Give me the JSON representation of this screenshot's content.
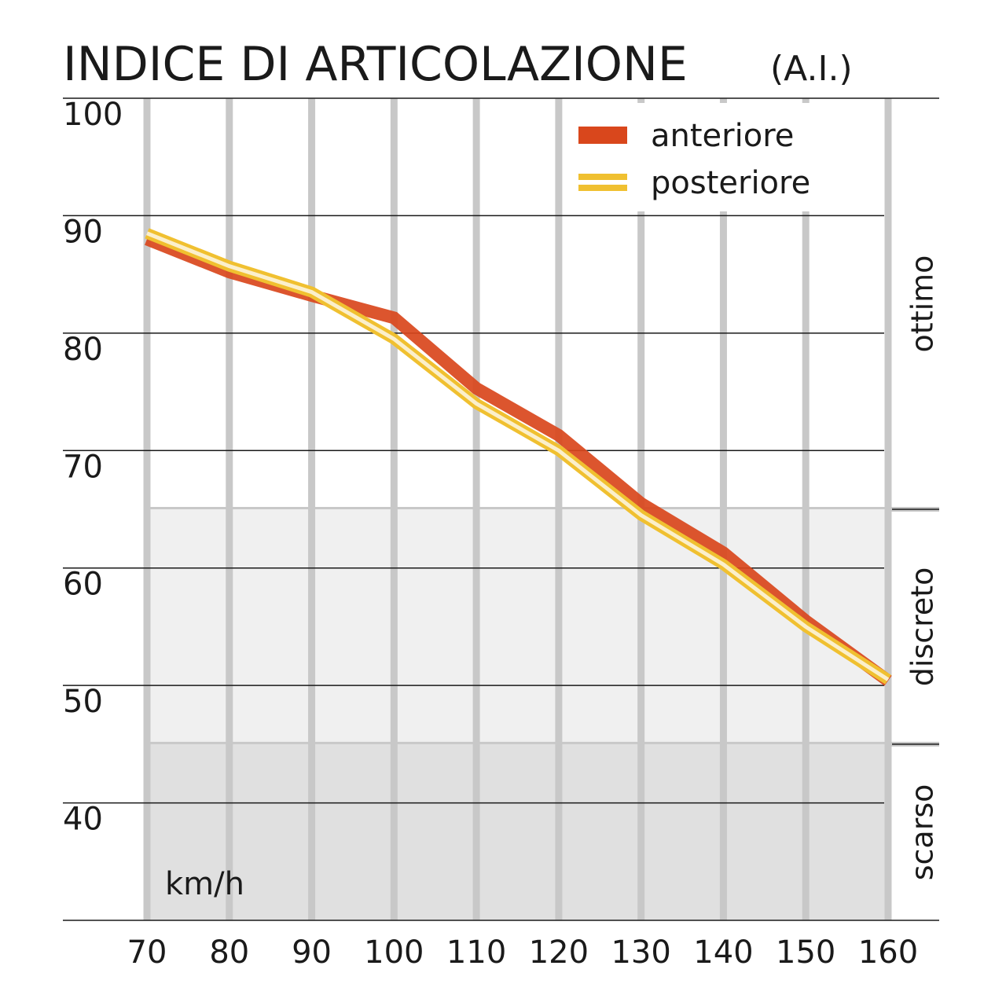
{
  "chart_data": {
    "type": "line",
    "title": "INDICE DI ARTICOLAZIONE",
    "title_unit": "(A.I.)",
    "x_label": "km/h",
    "x": [
      70,
      80,
      90,
      100,
      110,
      120,
      130,
      140,
      150,
      160
    ],
    "xlim": [
      70,
      160
    ],
    "xticks": [
      70,
      80,
      90,
      100,
      110,
      120,
      130,
      140,
      150,
      160
    ],
    "ylim": [
      30,
      100
    ],
    "yticks": [
      40,
      50,
      60,
      70,
      80,
      90,
      100
    ],
    "grid": true,
    "legend": "top-right",
    "zones": [
      {
        "label": "ottimo",
        "from": 65,
        "to": 100,
        "color": "#ffffff"
      },
      {
        "label": "discreto",
        "from": 45,
        "to": 65,
        "color": "#f0f0f0"
      },
      {
        "label": "scarso",
        "from": 30,
        "to": 45,
        "color": "#e0e0e0"
      }
    ],
    "series": [
      {
        "name": "anteriore",
        "color": "#d9471c",
        "values": [
          88.0,
          85.2,
          83.2,
          81.3,
          75.3,
          71.3,
          65.5,
          61.3,
          55.5,
          50.4
        ]
      },
      {
        "name": "posteriore",
        "color": "#f0c030",
        "values": [
          88.5,
          85.7,
          83.5,
          79.5,
          74.0,
          70.0,
          64.5,
          60.3,
          55.0,
          50.5
        ]
      }
    ]
  }
}
